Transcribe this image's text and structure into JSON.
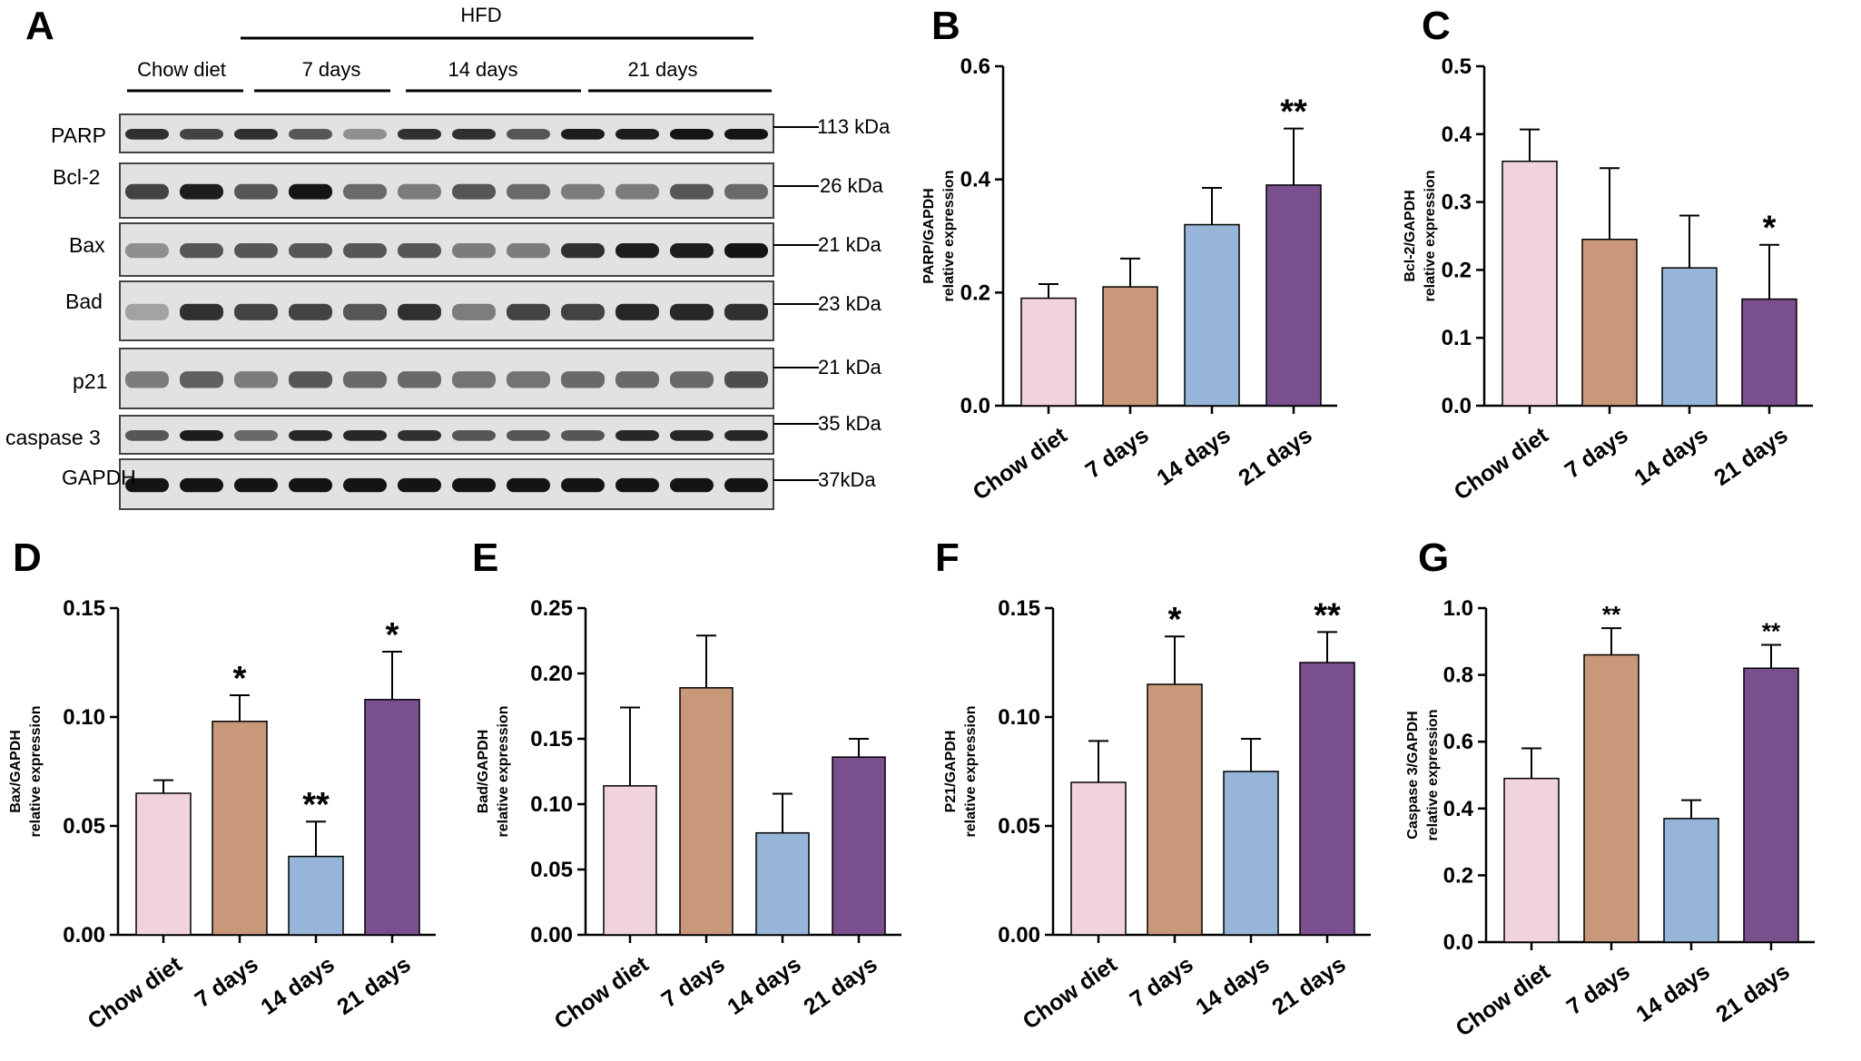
{
  "panel_letters": [
    "A",
    "B",
    "C",
    "D",
    "E",
    "F",
    "G"
  ],
  "blot": {
    "hfd_label": "HFD",
    "groups": [
      "Chow diet",
      "7 days",
      "14 days",
      "21 days"
    ],
    "rows": [
      {
        "name": "PARP",
        "kda": "113 kDa"
      },
      {
        "name": "Bcl-2",
        "kda": "26 kDa"
      },
      {
        "name": "Bax",
        "kda": "21 kDa"
      },
      {
        "name": "Bad",
        "kda": "23 kDa"
      },
      {
        "name": "p21",
        "kda": "21 kDa"
      },
      {
        "name": "caspase 3",
        "kda": "35 kDa"
      },
      {
        "name": "GAPDH",
        "kda": "37kDa"
      }
    ]
  },
  "colors": {
    "chow": "#f0d3df",
    "d7": "#c9977a",
    "d14": "#96b5d8",
    "d21": "#7a4f8e"
  },
  "chart_data": [
    {
      "id": "B",
      "type": "bar",
      "categories": [
        "Chow diet",
        "7 days",
        "14 days",
        "21  days"
      ],
      "values": [
        0.19,
        0.21,
        0.32,
        0.39
      ],
      "errors": [
        0.025,
        0.05,
        0.065,
        0.1
      ],
      "significance": [
        "",
        "",
        "",
        "**"
      ],
      "ylabel": [
        "PARP/GAPDH",
        "relative expression"
      ],
      "ylim": [
        0,
        0.6
      ],
      "yticks": [
        "0.0",
        "0.2",
        "0.4",
        "0.6"
      ]
    },
    {
      "id": "C",
      "type": "bar",
      "categories": [
        "Chow diet",
        "7 days",
        "14 days",
        "21  days"
      ],
      "values": [
        0.36,
        0.245,
        0.203,
        0.157
      ],
      "errors": [
        0.047,
        0.105,
        0.077,
        0.08
      ],
      "significance": [
        "",
        "",
        "",
        "*"
      ],
      "ylabel": [
        "Bcl-2/GAPDH",
        "relative expression"
      ],
      "ylim": [
        0,
        0.5
      ],
      "yticks": [
        "0.0",
        "0.1",
        "0.2",
        "0.3",
        "0.4",
        "0.5"
      ]
    },
    {
      "id": "D",
      "type": "bar",
      "categories": [
        "Chow diet",
        "7 days",
        "14 days",
        "21  days"
      ],
      "values": [
        0.065,
        0.098,
        0.036,
        0.108
      ],
      "errors": [
        0.006,
        0.012,
        0.016,
        0.022
      ],
      "significance": [
        "",
        "*",
        "**",
        "*"
      ],
      "ylabel": [
        "Bax/GAPDH",
        "relative expression"
      ],
      "ylim": [
        0,
        0.15
      ],
      "yticks": [
        "0.00",
        "0.05",
        "0.10",
        "0.15"
      ]
    },
    {
      "id": "E",
      "type": "bar",
      "categories": [
        "Chow diet",
        "7 days",
        "14 days",
        "21  days"
      ],
      "values": [
        0.114,
        0.189,
        0.078,
        0.136
      ],
      "errors": [
        0.06,
        0.04,
        0.03,
        0.014
      ],
      "significance": [
        "",
        "",
        "",
        ""
      ],
      "ylabel": [
        "Bad/GAPDH",
        "relative expression"
      ],
      "ylim": [
        0,
        0.25
      ],
      "yticks": [
        "0.00",
        "0.05",
        "0.10",
        "0.15",
        "0.20",
        "0.25"
      ]
    },
    {
      "id": "F",
      "type": "bar",
      "categories": [
        "Chow diet",
        "7 days",
        "14 days",
        "21  days"
      ],
      "values": [
        0.07,
        0.115,
        0.075,
        0.125
      ],
      "errors": [
        0.019,
        0.022,
        0.015,
        0.014
      ],
      "significance": [
        "",
        "*",
        "",
        "**"
      ],
      "ylabel": [
        "P21/GAPDH",
        "relative expression"
      ],
      "ylim": [
        0,
        0.15
      ],
      "yticks": [
        "0.00",
        "0.05",
        "0.10",
        "0.15"
      ]
    },
    {
      "id": "G",
      "type": "bar",
      "categories": [
        "Chow diet",
        "7 days",
        "14 days",
        "21  days"
      ],
      "values": [
        0.49,
        0.86,
        0.37,
        0.82
      ],
      "errors": [
        0.09,
        0.08,
        0.055,
        0.07
      ],
      "significance": [
        "",
        "**",
        "",
        "**"
      ],
      "ylabel": [
        "Caspase 3/GAPDH",
        "relative expression"
      ],
      "ylim": [
        0,
        1.0
      ],
      "yticks": [
        "0.0",
        "0.2",
        "0.4",
        "0.6",
        "0.8",
        "1.0"
      ]
    }
  ]
}
